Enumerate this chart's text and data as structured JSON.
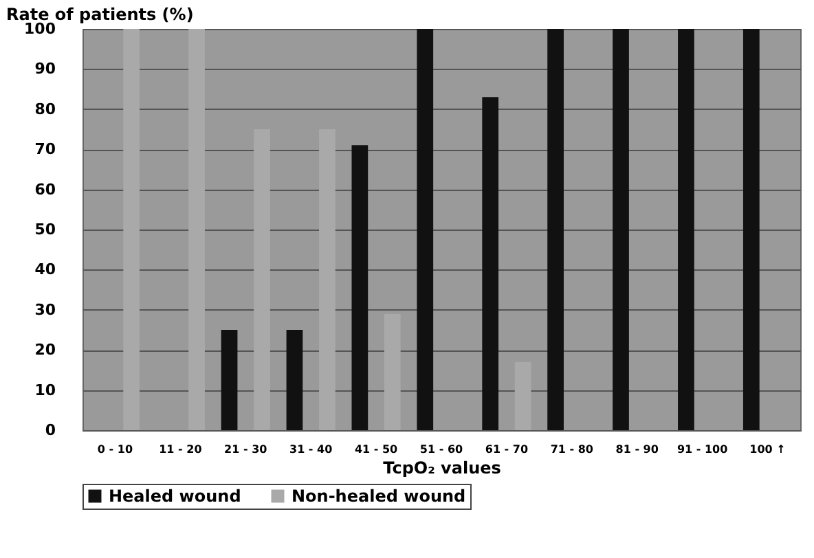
{
  "chart_data": {
    "type": "bar",
    "xlabel": "TcpO₂ values",
    "ylabel": "Rate of patients (%)",
    "categories": [
      "0 - 10",
      "11 - 20",
      "21 - 30",
      "31 - 40",
      "41 - 50",
      "51 - 60",
      "61 - 70",
      "71 - 80",
      "81 - 90",
      "91 - 100",
      "100 ↑"
    ],
    "series": [
      {
        "name": "Healed wound",
        "color": "#111111",
        "values": [
          0,
          0,
          25,
          25,
          71,
          100,
          83,
          100,
          100,
          100,
          100
        ]
      },
      {
        "name": "Non-healed wound",
        "color": "#a9a9a9",
        "values": [
          100,
          100,
          75,
          75,
          29,
          0,
          17,
          0,
          0,
          0,
          0
        ]
      }
    ],
    "ylim": [
      0,
      100
    ],
    "yticks": [
      0,
      10,
      20,
      30,
      40,
      50,
      60,
      70,
      80,
      90,
      100
    ],
    "grid": "y",
    "legend": "bottom"
  }
}
